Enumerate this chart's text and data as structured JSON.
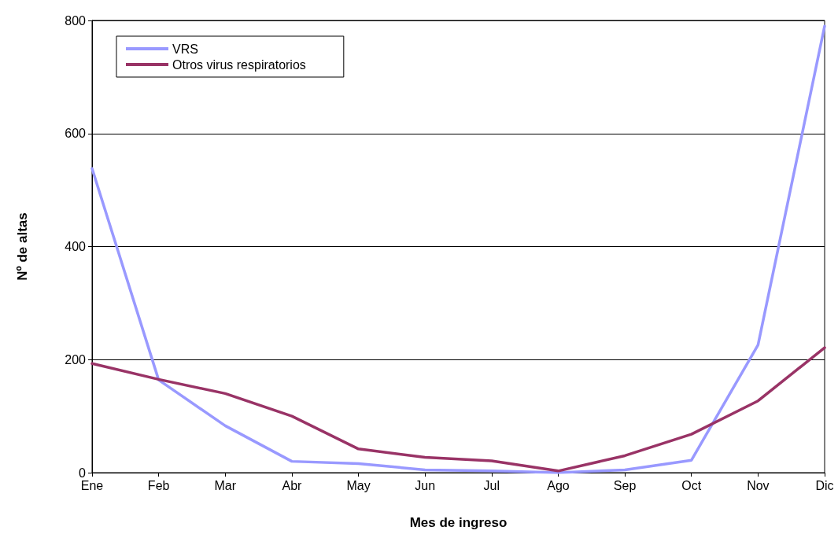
{
  "chart_data": {
    "type": "line",
    "xlabel": "Mes de ingreso",
    "ylabel": "Nº de altas",
    "categories": [
      "Ene",
      "Feb",
      "Mar",
      "Abr",
      "May",
      "Jun",
      "Jul",
      "Ago",
      "Sep",
      "Oct",
      "Nov",
      "Dic"
    ],
    "series": [
      {
        "name": "VRS",
        "color": "#9999ff",
        "values": [
          538,
          164,
          83,
          20,
          16,
          5,
          3,
          0,
          5,
          22,
          226,
          790
        ]
      },
      {
        "name": "Otros virus respiratorios",
        "color": "#993366",
        "values": [
          193,
          165,
          140,
          100,
          42,
          27,
          21,
          3,
          30,
          68,
          127,
          221
        ]
      }
    ],
    "ylim": [
      0,
      800
    ],
    "yticks": [
      0,
      200,
      400,
      600,
      800
    ],
    "grid": "y",
    "legend": "top left",
    "marker": "none",
    "line_style": "solid"
  }
}
